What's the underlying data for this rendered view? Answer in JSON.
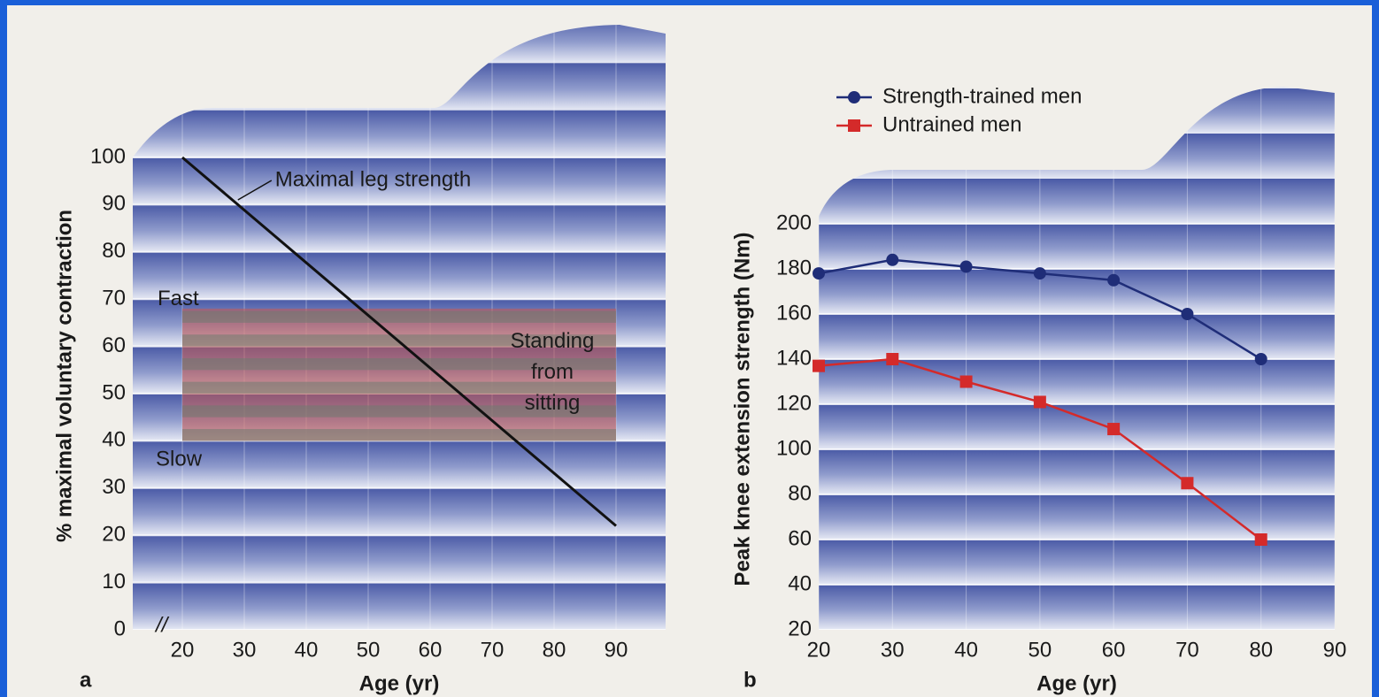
{
  "chart_data": [
    {
      "type": "line",
      "panel": "a",
      "xlabel": "Age (yr)",
      "ylabel": "% maximal voluntary contraction",
      "xlim": [
        12,
        98
      ],
      "xticks": [
        20,
        30,
        40,
        50,
        60,
        70,
        80,
        90
      ],
      "ylim": [
        0,
        100
      ],
      "yticks": [
        0,
        10,
        20,
        30,
        40,
        50,
        60,
        70,
        80,
        90,
        100
      ],
      "x": [
        20,
        90
      ],
      "series": [
        {
          "name": "Maximal leg strength",
          "color": "#111111",
          "values": [
            100,
            22
          ]
        }
      ],
      "zone": {
        "lines": [
          "Standing",
          "from",
          "sitting"
        ],
        "x": [
          20,
          90
        ],
        "y": [
          40,
          68
        ],
        "top_label": "Fast",
        "bottom_label": "Slow"
      }
    },
    {
      "type": "line",
      "panel": "b",
      "xlabel": "Age (yr)",
      "ylabel": "Peak knee extension strength (Nm)",
      "xlim": [
        20,
        90
      ],
      "xticks": [
        20,
        30,
        40,
        50,
        60,
        70,
        80,
        90
      ],
      "ylim": [
        20,
        200
      ],
      "yticks": [
        20,
        40,
        60,
        80,
        100,
        120,
        140,
        160,
        180,
        200
      ],
      "x": [
        20,
        30,
        40,
        50,
        60,
        70,
        80
      ],
      "legend": "top-left",
      "series": [
        {
          "name": "Strength-trained men",
          "color": "#1f2d78",
          "marker": "circle",
          "values": [
            178,
            184,
            181,
            178,
            175,
            160,
            140
          ]
        },
        {
          "name": "Untrained men",
          "color": "#d42a2a",
          "marker": "square",
          "values": [
            137,
            140,
            130,
            121,
            109,
            85,
            60
          ]
        }
      ]
    }
  ]
}
